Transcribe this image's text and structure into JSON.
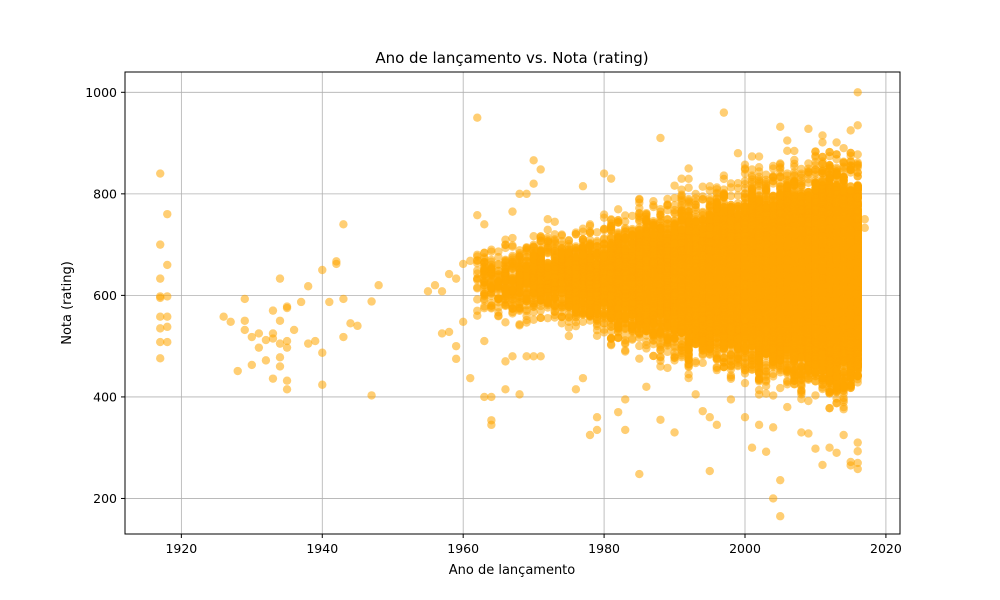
{
  "chart_data": {
    "type": "scatter",
    "title": "Ano de lançamento vs. Nota (rating)",
    "xlabel": "Ano de lançamento",
    "ylabel": "Nota (rating)",
    "xlim": [
      1912,
      2022
    ],
    "ylim": [
      130,
      1040
    ],
    "x_ticks": [
      1920,
      1940,
      1960,
      1980,
      2000,
      2020
    ],
    "y_ticks": [
      200,
      400,
      600,
      800,
      1000
    ],
    "grid": true,
    "marker_color": "#FFA500",
    "marker_alpha": 0.55,
    "points": [
      [
        1917,
        840
      ],
      [
        1917,
        700
      ],
      [
        1917,
        633
      ],
      [
        1917,
        598
      ],
      [
        1917,
        595
      ],
      [
        1917,
        558
      ],
      [
        1917,
        535
      ],
      [
        1917,
        508
      ],
      [
        1917,
        476
      ],
      [
        1918,
        760
      ],
      [
        1918,
        660
      ],
      [
        1918,
        598
      ],
      [
        1918,
        558
      ],
      [
        1918,
        538
      ],
      [
        1918,
        508
      ],
      [
        1926,
        558
      ],
      [
        1927,
        548
      ],
      [
        1928,
        451
      ],
      [
        1929,
        593
      ],
      [
        1929,
        550
      ],
      [
        1929,
        532
      ],
      [
        1930,
        518
      ],
      [
        1930,
        463
      ],
      [
        1931,
        525
      ],
      [
        1931,
        497
      ],
      [
        1932,
        512
      ],
      [
        1932,
        472
      ],
      [
        1933,
        570
      ],
      [
        1933,
        525
      ],
      [
        1933,
        515
      ],
      [
        1933,
        436
      ],
      [
        1934,
        633
      ],
      [
        1934,
        550
      ],
      [
        1934,
        505
      ],
      [
        1934,
        478
      ],
      [
        1934,
        460
      ],
      [
        1935,
        578
      ],
      [
        1935,
        575
      ],
      [
        1935,
        510
      ],
      [
        1935,
        497
      ],
      [
        1935,
        432
      ],
      [
        1935,
        415
      ],
      [
        1936,
        532
      ],
      [
        1937,
        587
      ],
      [
        1938,
        618
      ],
      [
        1938,
        505
      ],
      [
        1939,
        510
      ],
      [
        1940,
        650
      ],
      [
        1940,
        487
      ],
      [
        1940,
        424
      ],
      [
        1941,
        587
      ],
      [
        1942,
        667
      ],
      [
        1942,
        662
      ],
      [
        1943,
        740
      ],
      [
        1943,
        593
      ],
      [
        1943,
        518
      ],
      [
        1944,
        545
      ],
      [
        1945,
        540
      ],
      [
        1947,
        588
      ],
      [
        1947,
        403
      ],
      [
        1948,
        620
      ],
      [
        1955,
        608
      ],
      [
        1956,
        620
      ],
      [
        1957,
        608
      ],
      [
        1957,
        525
      ],
      [
        1958,
        642
      ],
      [
        1958,
        528
      ],
      [
        1959,
        633
      ],
      [
        1959,
        500
      ],
      [
        1959,
        475
      ],
      [
        1960,
        662
      ],
      [
        1960,
        548
      ],
      [
        1961,
        668
      ],
      [
        1961,
        437
      ],
      [
        1962,
        950
      ],
      [
        1962,
        758
      ],
      [
        1962,
        680
      ],
      [
        1962,
        592
      ],
      [
        1962,
        560
      ],
      [
        1963,
        740
      ],
      [
        1963,
        650
      ],
      [
        1963,
        510
      ],
      [
        1963,
        400
      ],
      [
        1964,
        580
      ],
      [
        1964,
        400
      ],
      [
        1964,
        354
      ],
      [
        1964,
        345
      ],
      [
        1965,
        620
      ],
      [
        1965,
        560
      ],
      [
        1966,
        700
      ],
      [
        1966,
        470
      ],
      [
        1966,
        415
      ],
      [
        1967,
        765
      ],
      [
        1967,
        480
      ],
      [
        1968,
        800
      ],
      [
        1968,
        405
      ],
      [
        1969,
        800
      ],
      [
        1969,
        480
      ],
      [
        1970,
        866
      ],
      [
        1970,
        820
      ],
      [
        1970,
        480
      ],
      [
        1971,
        848
      ],
      [
        1971,
        480
      ],
      [
        1972,
        750
      ],
      [
        1973,
        745
      ],
      [
        1974,
        545
      ],
      [
        1975,
        520
      ],
      [
        1976,
        415
      ],
      [
        1977,
        815
      ],
      [
        1977,
        437
      ],
      [
        1978,
        325
      ],
      [
        1979,
        360
      ],
      [
        1979,
        335
      ],
      [
        1980,
        840
      ],
      [
        1981,
        830
      ],
      [
        1982,
        370
      ],
      [
        1983,
        395
      ],
      [
        1983,
        335
      ],
      [
        1985,
        248
      ],
      [
        1986,
        420
      ],
      [
        1988,
        910
      ],
      [
        1988,
        355
      ],
      [
        1990,
        330
      ],
      [
        1992,
        850
      ],
      [
        1993,
        405
      ],
      [
        1994,
        372
      ],
      [
        1995,
        360
      ],
      [
        1995,
        254
      ],
      [
        1996,
        345
      ],
      [
        1997,
        960
      ],
      [
        1998,
        395
      ],
      [
        1999,
        880
      ],
      [
        2000,
        360
      ],
      [
        2001,
        300
      ],
      [
        2002,
        345
      ],
      [
        2003,
        292
      ],
      [
        2004,
        340
      ],
      [
        2004,
        200
      ],
      [
        2005,
        932
      ],
      [
        2005,
        236
      ],
      [
        2005,
        165
      ],
      [
        2006,
        905
      ],
      [
        2006,
        380
      ],
      [
        2008,
        330
      ],
      [
        2009,
        928
      ],
      [
        2009,
        328
      ],
      [
        2010,
        298
      ],
      [
        2011,
        915
      ],
      [
        2011,
        266
      ],
      [
        2012,
        300
      ],
      [
        2013,
        290
      ],
      [
        2014,
        890
      ],
      [
        2014,
        325
      ],
      [
        2015,
        925
      ],
      [
        2015,
        272
      ],
      [
        2015,
        265
      ],
      [
        2016,
        1000
      ],
      [
        2016,
        935
      ],
      [
        2016,
        310
      ],
      [
        2016,
        293
      ],
      [
        2016,
        270
      ],
      [
        2016,
        258
      ],
      [
        2017,
        750
      ],
      [
        2017,
        733
      ]
    ],
    "density_bands": [
      [
        1962,
        1965,
        560,
        700,
        0.8
      ],
      [
        1965,
        1970,
        540,
        720,
        1.4
      ],
      [
        1970,
        1975,
        540,
        730,
        2.2
      ],
      [
        1975,
        1980,
        520,
        740,
        3.2
      ],
      [
        1980,
        1985,
        490,
        770,
        4.6
      ],
      [
        1985,
        1990,
        470,
        790,
        6.4
      ],
      [
        1990,
        1995,
        450,
        810,
        8.5
      ],
      [
        1995,
        2000,
        440,
        830,
        11
      ],
      [
        2000,
        2005,
        420,
        850,
        15
      ],
      [
        2005,
        2010,
        410,
        860,
        20
      ],
      [
        2010,
        2016.4,
        395,
        875,
        28
      ]
    ]
  }
}
